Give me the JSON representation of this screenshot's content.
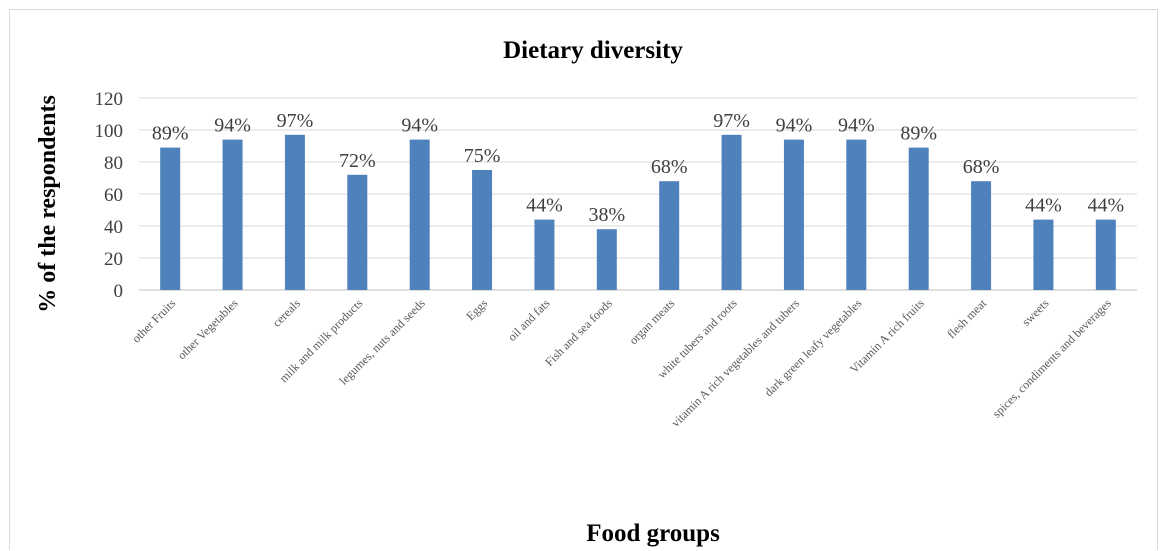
{
  "chart_data": {
    "type": "bar",
    "title": "Dietary diversity",
    "xlabel": "Food groups",
    "ylabel": "% of the respondents",
    "ylim": [
      0,
      120
    ],
    "yticks": [
      0,
      20,
      40,
      60,
      80,
      100,
      120
    ],
    "grid": true,
    "legend": "none",
    "bar_color": "#4f81bd",
    "categories": [
      "other Fruits",
      "other Vegetables",
      "cereals",
      "milk and milk products",
      "legumes, nuts and seeds",
      "Eggs",
      "oil and fats",
      "Fish and sea foods",
      "organ meats",
      "white tubers and roots",
      "vitamin A rich vegetables and tubers",
      "dark green leafy vegetables",
      "Vitamin A rich fruits",
      "flesh meat",
      "sweets",
      "spices, condiments and beverages"
    ],
    "values": [
      89,
      94,
      97,
      72,
      94,
      75,
      44,
      38,
      68,
      97,
      94,
      94,
      89,
      68,
      44,
      44
    ],
    "data_labels": [
      "89%",
      "94%",
      "97%",
      "72%",
      "94%",
      "75%",
      "44%",
      "38%",
      "68%",
      "97%",
      "94%",
      "94%",
      "89%",
      "68%",
      "44%",
      "44%"
    ]
  }
}
